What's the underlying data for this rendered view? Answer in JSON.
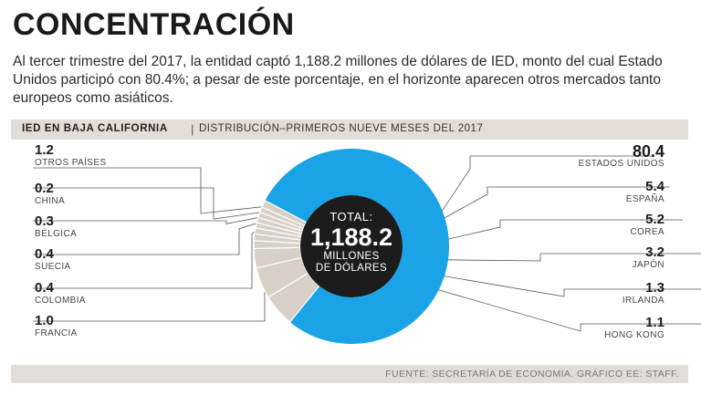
{
  "header": {
    "title": "CONCENTRACIÓN",
    "subtitle": "Al tercer trimestre del 2017, la entidad captó 1,188.2 millones de dólares de IED, monto del cual Estado Unidos participó con 80.4%; a pesar de este porcentaje, en el horizonte aparecen otros mercados tanto europeos como asiáticos."
  },
  "band": {
    "title": "IED EN BAJA CALIFORNIA",
    "separator": "|",
    "subtitle": "DISTRIBUCIÓN–PRIMEROS NUEVE MESES DEL 2017"
  },
  "center": {
    "line1": "TOTAL:",
    "line2": "1,188.2",
    "line3": "MILLONES",
    "line4": "DE DÓLARES"
  },
  "footer": {
    "source": "FUENTE: SECRETARÍA DE ECONOMÍA. GRÁFICO EE: STAFF."
  },
  "colors": {
    "primary": "#1aa3e6",
    "secondary": "#d8d0c6",
    "center": "#1c1c1c",
    "band": "#e2ddd7"
  },
  "chart_data": {
    "type": "pie",
    "title": "IED EN BAJA CALIFORNIA",
    "subtitle": "DISTRIBUCIÓN–PRIMEROS NUEVE MESES DEL 2017",
    "unit": "%",
    "total": "1,188.2",
    "slices": [
      {
        "label": "ESTADOS UNIDOS",
        "value": 80.4
      },
      {
        "label": "ESPAÑA",
        "value": 5.4
      },
      {
        "label": "COREA",
        "value": 5.2
      },
      {
        "label": "JAPÓN",
        "value": 3.2
      },
      {
        "label": "IRLANDA",
        "value": 1.3
      },
      {
        "label": "HONG KONG",
        "value": 1.1
      },
      {
        "label": "FRANCIA",
        "value": 1.0
      },
      {
        "label": "COLOMBIA",
        "value": 0.4
      },
      {
        "label": "SUECIA",
        "value": 0.4
      },
      {
        "label": "BÉLGICA",
        "value": 0.3
      },
      {
        "label": "CHINA",
        "value": 0.2
      },
      {
        "label": "OTROS PAÍSES",
        "value": 1.2
      }
    ],
    "labels_left": [
      {
        "value": "1.2",
        "name": "OTROS PAÍSES"
      },
      {
        "value": "0.2",
        "name": "CHINA"
      },
      {
        "value": "0.3",
        "name": "BÉLGICA"
      },
      {
        "value": "0.4",
        "name": "SUECIA"
      },
      {
        "value": "0.4",
        "name": "COLOMBIA"
      },
      {
        "value": "1.0",
        "name": "FRANCIA"
      }
    ],
    "labels_right": [
      {
        "value": "80.4",
        "name": "ESTADOS UNIDOS"
      },
      {
        "value": "5.4",
        "name": "ESPAÑA"
      },
      {
        "value": "5.2",
        "name": "COREA"
      },
      {
        "value": "3.2",
        "name": "JAPÓN"
      },
      {
        "value": "1.3",
        "name": "IRLANDA"
      },
      {
        "value": "1.1",
        "name": "HONG KONG"
      }
    ]
  }
}
